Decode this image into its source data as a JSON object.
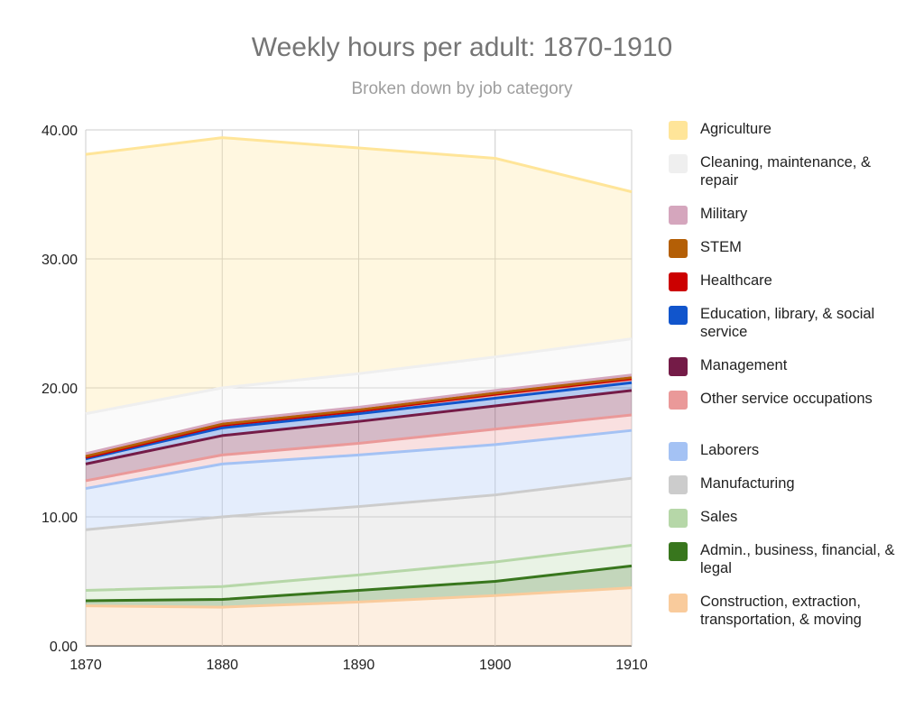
{
  "title": "Weekly hours per adult: 1870-1910",
  "subtitle": "Broken down by job category",
  "chart_data": {
    "type": "area",
    "stacked": true,
    "title": "Weekly hours per adult: 1870-1910",
    "subtitle": "Broken down by job category",
    "xlabel": "",
    "ylabel": "",
    "x": [
      1870,
      1880,
      1890,
      1900,
      1910
    ],
    "x_tick_labels": [
      "1870",
      "1880",
      "1890",
      "1900",
      "1910"
    ],
    "ylim": [
      0,
      40
    ],
    "y_ticks": [
      0,
      10,
      20,
      30,
      40
    ],
    "y_tick_labels": [
      "0.00",
      "10.00",
      "20.00",
      "30.00",
      "40.00"
    ],
    "grid": true,
    "legend_position": "right",
    "series": [
      {
        "name": "Construction, extraction, transportation, & moving",
        "color": "#f9cb9c",
        "values": [
          3.1,
          3.0,
          3.4,
          3.9,
          4.5
        ]
      },
      {
        "name": "Admin., business, financial, & legal",
        "color": "#38761d",
        "values": [
          0.4,
          0.6,
          0.9,
          1.1,
          1.7
        ]
      },
      {
        "name": "Sales",
        "color": "#b6d7a8",
        "values": [
          0.8,
          1.0,
          1.2,
          1.5,
          1.6
        ]
      },
      {
        "name": "Manufacturing",
        "color": "#cccccc",
        "values": [
          4.7,
          5.4,
          5.3,
          5.2,
          5.2
        ]
      },
      {
        "name": "Laborers",
        "color": "#a4c2f4",
        "values": [
          3.2,
          4.1,
          4.0,
          3.9,
          3.7
        ]
      },
      {
        "name": "Other service occupations",
        "color": "#ea9999",
        "values": [
          0.6,
          0.7,
          0.9,
          1.2,
          1.2
        ]
      },
      {
        "name": "Management",
        "color": "#741b47",
        "values": [
          1.3,
          1.5,
          1.7,
          1.8,
          1.9
        ]
      },
      {
        "name": "Education, library, & social service",
        "color": "#1155cc",
        "values": [
          0.4,
          0.6,
          0.6,
          0.6,
          0.6
        ]
      },
      {
        "name": "Healthcare",
        "color": "#cc0000",
        "values": [
          0.1,
          0.2,
          0.2,
          0.3,
          0.3
        ]
      },
      {
        "name": "STEM",
        "color": "#b45f06",
        "values": [
          0.1,
          0.1,
          0.1,
          0.1,
          0.1
        ]
      },
      {
        "name": "Military",
        "color": "#d5a6bd",
        "values": [
          0.2,
          0.2,
          0.2,
          0.2,
          0.2
        ]
      },
      {
        "name": "Cleaning, maintenance, & repair",
        "color": "#efefef",
        "values": [
          3.1,
          2.6,
          2.6,
          2.6,
          2.8
        ]
      },
      {
        "name": "Agriculture",
        "color": "#ffe599",
        "values": [
          20.1,
          19.4,
          17.5,
          15.4,
          11.4
        ]
      }
    ]
  }
}
